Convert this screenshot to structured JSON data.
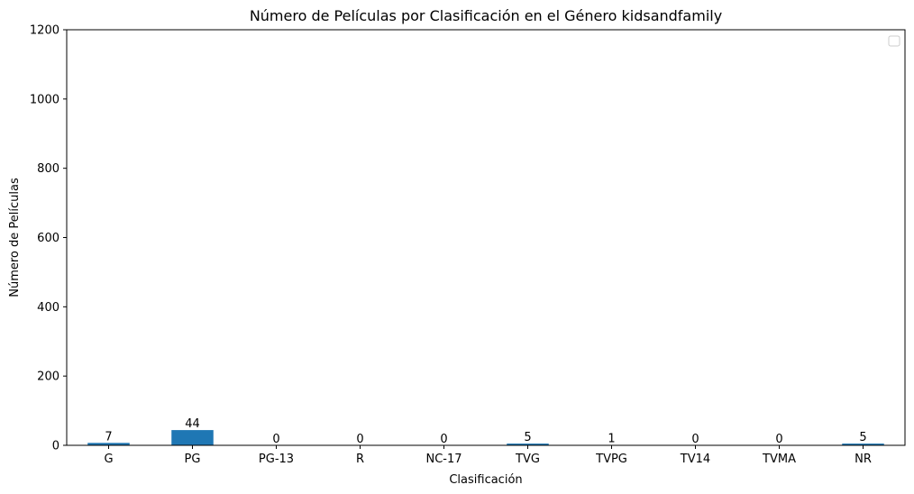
{
  "chart_data": {
    "type": "bar",
    "title": "Número de Películas por Clasificación en el Género kidsandfamily",
    "xlabel": "Clasificación",
    "ylabel": "Número de Películas",
    "categories": [
      "G",
      "PG",
      "PG-13",
      "R",
      "NC-17",
      "TVG",
      "TVPG",
      "TV14",
      "TVMA",
      "NR"
    ],
    "values": [
      7,
      44,
      0,
      0,
      0,
      5,
      1,
      0,
      0,
      5
    ],
    "data_labels": [
      "7",
      "44",
      "0",
      "0",
      "0",
      "5",
      "1",
      "0",
      "0",
      "5"
    ],
    "ylim": [
      0,
      1200
    ],
    "yticks": [
      0,
      200,
      400,
      600,
      800,
      1000,
      1200
    ],
    "ytick_labels": [
      "0",
      "200",
      "400",
      "600",
      "800",
      "1000",
      "1200"
    ],
    "grid": false,
    "legend": {
      "placement": "top-right",
      "entries": []
    },
    "colors": {
      "bar": "#1f77b4"
    }
  }
}
